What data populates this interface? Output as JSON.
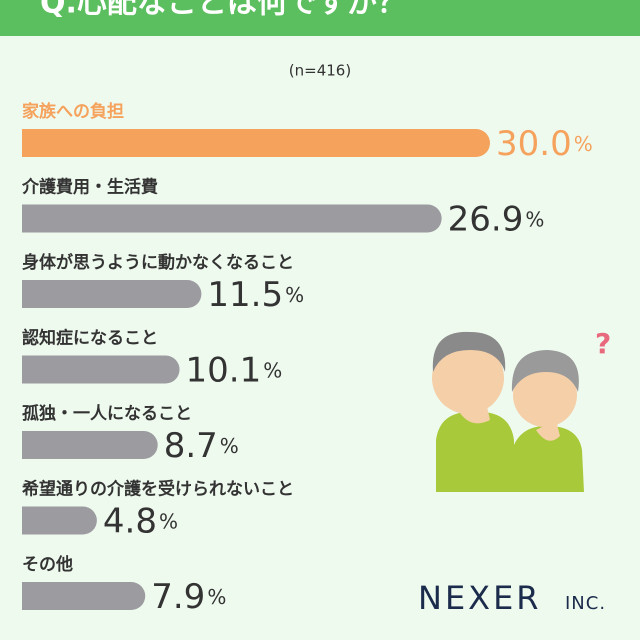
{
  "chart_data": {
    "type": "bar",
    "title": "Q.心配なことは何ですか？",
    "subtitle": "(n=416)",
    "categories": [
      "家族への負担",
      "介護費用・生活費",
      "身体が思うように動かなくなること",
      "認知症になること",
      "孤独・一人になること",
      "希望通りの介護を受けられないこと",
      "その他"
    ],
    "values": [
      30.0,
      26.9,
      11.5,
      10.1,
      8.7,
      4.8,
      7.9
    ],
    "value_labels": [
      "30.0%",
      "26.9%",
      "11.5%",
      "10.1%",
      "8.7%",
      "4.8%",
      "7.9%"
    ],
    "colors": [
      "#f5a25d",
      "#9b9ba0",
      "#9b9ba0",
      "#9b9ba0",
      "#9b9ba0",
      "#9b9ba0",
      "#9b9ba0"
    ],
    "logo": {
      "name": "NEXER",
      "suffix": "INC."
    }
  }
}
